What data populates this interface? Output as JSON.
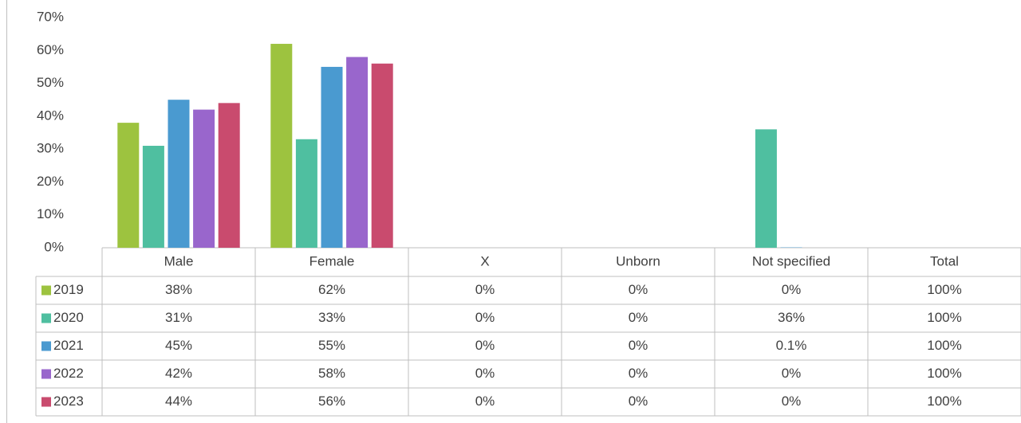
{
  "chart_data": {
    "type": "bar",
    "categories": [
      "Male",
      "Female",
      "X",
      "Unborn",
      "Not specified"
    ],
    "total_header": "Total",
    "series": [
      {
        "name": "2019",
        "color": "#9dc33f",
        "values": [
          38,
          62,
          0,
          0,
          0
        ],
        "value_labels": [
          "38%",
          "62%",
          "0%",
          "0%",
          "0%"
        ],
        "totals": [
          "100%"
        ]
      },
      {
        "name": "2020",
        "color": "#4fbfa0",
        "values": [
          31,
          33,
          0,
          0,
          36
        ],
        "value_labels": [
          "31%",
          "33%",
          "0%",
          "0%",
          "36%"
        ],
        "totals": [
          "100%"
        ]
      },
      {
        "name": "2021",
        "color": "#4a9ad0",
        "values": [
          45,
          55,
          0,
          0,
          0.1
        ],
        "value_labels": [
          "45%",
          "55%",
          "0%",
          "0%",
          "0.1%"
        ],
        "totals": [
          "100%"
        ]
      },
      {
        "name": "2022",
        "color": "#9966cc",
        "values": [
          42,
          58,
          0,
          0,
          0
        ],
        "value_labels": [
          "42%",
          "58%",
          "0%",
          "0%",
          "0%"
        ],
        "totals": [
          "100%"
        ]
      },
      {
        "name": "2023",
        "color": "#c94b6e",
        "values": [
          44,
          56,
          0,
          0,
          0
        ],
        "value_labels": [
          "44%",
          "56%",
          "0%",
          "0%",
          "0%"
        ],
        "totals": [
          "100%"
        ]
      }
    ],
    "ylim": [
      0,
      70
    ],
    "yticks": [
      {
        "value": 0,
        "label": "0%"
      },
      {
        "value": 10,
        "label": "10%"
      },
      {
        "value": 20,
        "label": "20%"
      },
      {
        "value": 30,
        "label": "30%"
      },
      {
        "value": 40,
        "label": "40%"
      },
      {
        "value": 50,
        "label": "50%"
      },
      {
        "value": 60,
        "label": "60%"
      },
      {
        "value": 70,
        "label": "70%"
      }
    ],
    "grid": false
  }
}
